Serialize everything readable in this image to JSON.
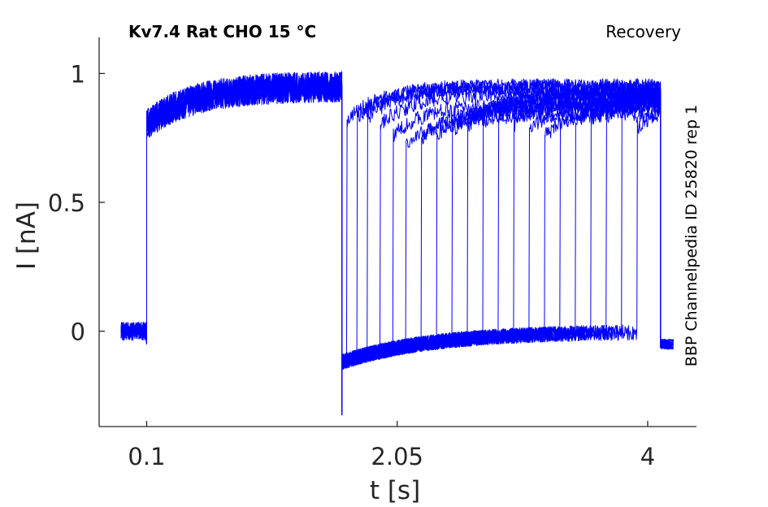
{
  "chart_data": {
    "type": "line",
    "title": "Kv7.4  Rat  CHO  15 °C",
    "subtitle": "Recovery",
    "side_label": "BBP Channelpedia ID 25820 rep 1",
    "xlabel": "t [s]",
    "ylabel": "I [nA]",
    "xlim": [
      -0.27,
      4.38
    ],
    "ylim": [
      -0.37,
      1.14
    ],
    "x_ticks": [
      0.1,
      2.05,
      4
    ],
    "x_tick_labels": [
      "0.1",
      "2.05",
      "4"
    ],
    "y_ticks": [
      0,
      0.5,
      1
    ],
    "y_tick_labels": [
      "0",
      "0.5",
      "1"
    ],
    "grid": false,
    "line_color": "#0000ff",
    "protocol": {
      "baseline_start": -0.1,
      "step_on": 0.1,
      "step_off": 1.62,
      "peak_current": 0.95,
      "baseline_current": 0.0,
      "tail_current": -0.3,
      "recovery_pulse_starts": [
        1.66,
        1.74,
        1.82,
        1.92,
        2.02,
        2.12,
        2.24,
        2.36,
        2.48,
        2.6,
        2.72,
        2.84,
        2.96,
        3.08,
        3.2,
        3.32,
        3.44,
        3.56,
        3.68,
        3.8,
        3.92
      ],
      "recovery_pulse_end": 4.1,
      "recovery_peak_currents": [
        0.92,
        0.93,
        0.93,
        0.9,
        0.86,
        0.82,
        0.85,
        0.86,
        0.88,
        0.9,
        0.91,
        0.92,
        0.9,
        0.88,
        0.86,
        0.9,
        0.91,
        0.92,
        0.93,
        0.94,
        0.89
      ],
      "recovery_end_x": 4.2,
      "recovery_end_current": -0.05
    }
  }
}
